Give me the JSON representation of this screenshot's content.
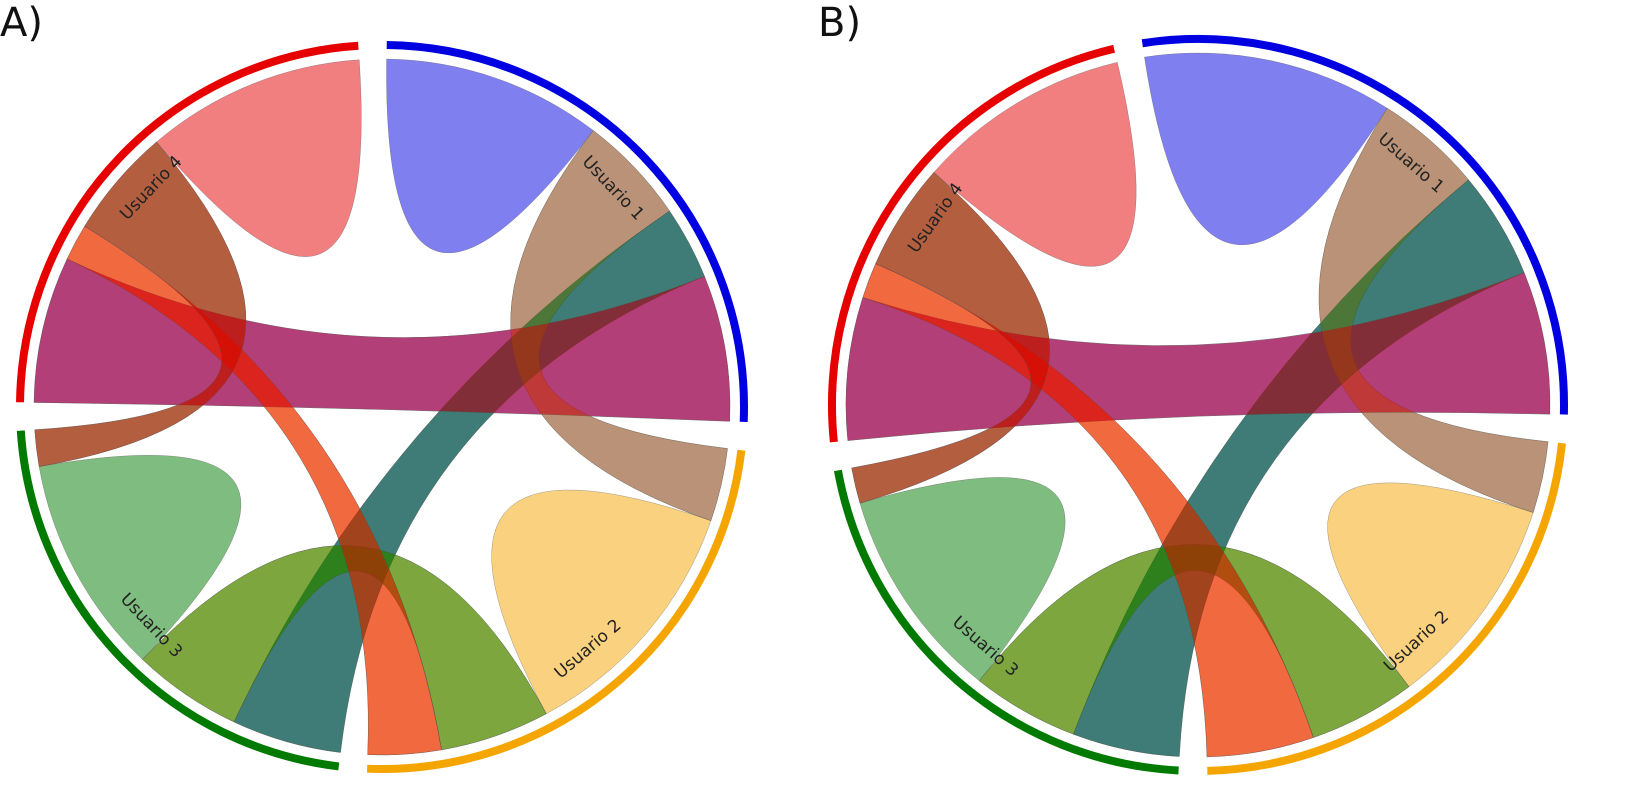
{
  "chart_data": [
    {
      "type": "chord",
      "panel_label": "A)",
      "labels": [
        "Usuario 1",
        "Usuario 2",
        "Usuario 3",
        "Usuario 4"
      ],
      "colors": [
        "#0000e0",
        "#f5a500",
        "#007a00",
        "#e60000"
      ],
      "matrix": [
        [
          6,
          3,
          2,
          4
        ],
        [
          2,
          7,
          3,
          2
        ],
        [
          3,
          3,
          6,
          1
        ],
        [
          4,
          1,
          3,
          6
        ]
      ]
    },
    {
      "type": "chord",
      "panel_label": "B)",
      "labels": [
        "Usuario 1",
        "Usuario 2",
        "Usuario 3",
        "Usuario 4"
      ],
      "colors": [
        "#0000e0",
        "#f5a500",
        "#007a00",
        "#e60000"
      ],
      "matrix": [
        [
          7,
          3,
          3,
          4
        ],
        [
          2,
          6,
          3,
          3
        ],
        [
          3,
          3,
          6,
          1
        ],
        [
          4,
          1,
          3,
          6
        ]
      ]
    }
  ]
}
